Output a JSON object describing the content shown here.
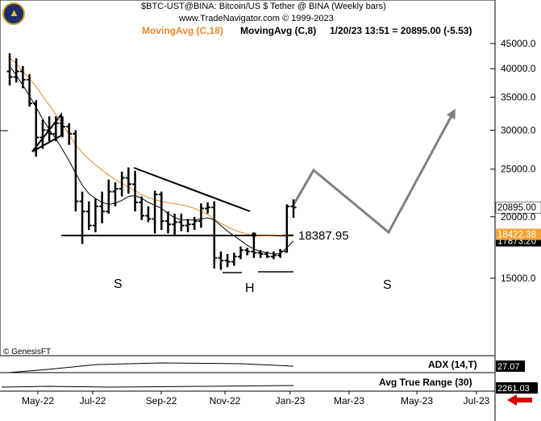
{
  "header": {
    "line1": "$BTC-UST@BINA:  Bitcoin/US $ Tether @ BINA  (Weekly bars)",
    "line2": "www.TradeNavigator.com © 1999-2023",
    "ma18": "MovingAvg (C,18)",
    "ma8": "MovingAvg (C,8)",
    "readout": "1/20/23 13:51 = 20895.00 (-5.53)"
  },
  "watermark": "© GenesisFT",
  "colors": {
    "ma18": "#e8892a",
    "ma8": "#000000",
    "price_tag": "#f4a234",
    "arrow": "#808080",
    "adx": "#000000"
  },
  "chart_data": {
    "type": "ohlc",
    "title": "$BTC-UST@BINA: Bitcoin/US $ Tether @ BINA (Weekly bars)",
    "y_scale": "log",
    "ylim": [
      11500,
      47500
    ],
    "y_ticks": [
      45000,
      40000,
      35000,
      30000,
      25000,
      20000,
      15000
    ],
    "y_tick_labels": [
      "45000.0",
      "40000.0",
      "35000.0",
      "30000.0",
      "25000.0",
      "20000.0",
      "15000.0"
    ],
    "x_labels": [
      "May-22",
      "Jul-22",
      "Sep-22",
      "Nov-22",
      "Jan-23",
      "Mar-23",
      "May-23",
      "Jul-23"
    ],
    "bars": [
      {
        "o": 39500,
        "h": 43000,
        "l": 37000,
        "c": 38500
      },
      {
        "o": 38500,
        "h": 42000,
        "l": 37500,
        "c": 39500
      },
      {
        "o": 39500,
        "h": 40500,
        "l": 36500,
        "c": 38000
      },
      {
        "o": 38000,
        "h": 39000,
        "l": 33500,
        "c": 34000
      },
      {
        "o": 34000,
        "h": 34500,
        "l": 26500,
        "c": 29000
      },
      {
        "o": 29000,
        "h": 31500,
        "l": 27500,
        "c": 30000
      },
      {
        "o": 30000,
        "h": 32000,
        "l": 28500,
        "c": 29500
      },
      {
        "o": 29500,
        "h": 32000,
        "l": 28500,
        "c": 31000
      },
      {
        "o": 31000,
        "h": 32000,
        "l": 29000,
        "c": 30500
      },
      {
        "o": 30500,
        "h": 31000,
        "l": 28000,
        "c": 29500
      },
      {
        "o": 29500,
        "h": 30000,
        "l": 20500,
        "c": 21500
      },
      {
        "o": 21500,
        "h": 22500,
        "l": 17600,
        "c": 20500
      },
      {
        "o": 20500,
        "h": 21500,
        "l": 18800,
        "c": 19200
      },
      {
        "o": 19200,
        "h": 21800,
        "l": 18600,
        "c": 21000
      },
      {
        "o": 21000,
        "h": 22500,
        "l": 19400,
        "c": 20500
      },
      {
        "o": 20500,
        "h": 23800,
        "l": 20300,
        "c": 22500
      },
      {
        "o": 22500,
        "h": 23500,
        "l": 21000,
        "c": 22800
      },
      {
        "o": 22800,
        "h": 24700,
        "l": 22000,
        "c": 24000
      },
      {
        "o": 24000,
        "h": 25200,
        "l": 22300,
        "c": 23300
      },
      {
        "o": 23300,
        "h": 24800,
        "l": 20500,
        "c": 21400
      },
      {
        "o": 21400,
        "h": 22000,
        "l": 19700,
        "c": 20100
      },
      {
        "o": 20100,
        "h": 21000,
        "l": 19500,
        "c": 19800
      },
      {
        "o": 19800,
        "h": 22600,
        "l": 18500,
        "c": 22200
      },
      {
        "o": 22200,
        "h": 22500,
        "l": 18800,
        "c": 19600
      },
      {
        "o": 19600,
        "h": 20500,
        "l": 18500,
        "c": 19300
      },
      {
        "o": 19300,
        "h": 20300,
        "l": 18400,
        "c": 19500
      },
      {
        "o": 19500,
        "h": 20300,
        "l": 18700,
        "c": 19200
      },
      {
        "o": 19200,
        "h": 19800,
        "l": 18600,
        "c": 19300
      },
      {
        "o": 19300,
        "h": 20000,
        "l": 18800,
        "c": 19600
      },
      {
        "o": 19600,
        "h": 21300,
        "l": 19000,
        "c": 20800
      },
      {
        "o": 20800,
        "h": 21400,
        "l": 20300,
        "c": 20900
      },
      {
        "o": 20900,
        "h": 21500,
        "l": 15700,
        "c": 16500
      },
      {
        "o": 16500,
        "h": 17000,
        "l": 15600,
        "c": 16300
      },
      {
        "o": 16300,
        "h": 16800,
        "l": 15800,
        "c": 16200
      },
      {
        "o": 16200,
        "h": 16900,
        "l": 15900,
        "c": 16600
      },
      {
        "o": 16600,
        "h": 17400,
        "l": 16400,
        "c": 17100
      },
      {
        "o": 17100,
        "h": 17300,
        "l": 16700,
        "c": 17000
      },
      {
        "o": 17000,
        "h": 18400,
        "l": 16500,
        "c": 16900
      },
      {
        "o": 16900,
        "h": 17100,
        "l": 16500,
        "c": 16800
      },
      {
        "o": 16800,
        "h": 17000,
        "l": 16500,
        "c": 16600
      },
      {
        "o": 16600,
        "h": 17000,
        "l": 16400,
        "c": 16700
      },
      {
        "o": 16700,
        "h": 17200,
        "l": 16500,
        "c": 17000
      },
      {
        "o": 17000,
        "h": 21200,
        "l": 16900,
        "c": 21000
      },
      {
        "o": 21000,
        "h": 21700,
        "l": 19900,
        "c": 20895
      }
    ],
    "ma18": [
      42000,
      41000,
      39500,
      38200,
      36800,
      35200,
      33700,
      32300,
      30800,
      29400,
      28000,
      27000,
      26200,
      25500,
      24900,
      24300,
      23800,
      23400,
      23000,
      22600,
      22200,
      21900,
      21650,
      21500,
      21350,
      21250,
      21150,
      21000,
      20800,
      20500,
      20200,
      19800,
      19400,
      19100,
      18800,
      18600,
      18450,
      18350,
      18300,
      18300,
      18330,
      18360,
      18400,
      18422
    ],
    "ma8": [
      40500,
      38800,
      37000,
      35200,
      33400,
      31600,
      30100,
      28800,
      27400,
      26000,
      24500,
      23200,
      22300,
      21800,
      21400,
      21200,
      21300,
      21600,
      22000,
      22100,
      21800,
      21400,
      21100,
      20800,
      20300,
      19900,
      19700,
      19700,
      19700,
      19800,
      19900,
      19700,
      19200,
      18700,
      18300,
      17900,
      17500,
      17200,
      17000,
      16900,
      16800,
      16850,
      17300,
      17873
    ],
    "price_tags": [
      {
        "label": "20895.00",
        "value": 20895.0
      },
      {
        "label": "18422.38",
        "value": 18422.38
      },
      {
        "label": "17873.20",
        "value": 17873.2
      }
    ],
    "annotations": {
      "neckline_value": 18387.95,
      "neckline_label": "18387.95",
      "left_shoulder": "S",
      "head": "H",
      "right_shoulder": "S"
    },
    "indicators": [
      {
        "name": "ADX (14,T)",
        "value": "27.07"
      },
      {
        "name": "Avg True Range (30)",
        "value": "2261.03"
      }
    ]
  }
}
